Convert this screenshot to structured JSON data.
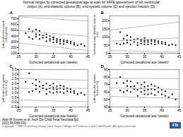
{
  "title": "Normal ranges by corrected gestational age at scan for bFFE assessment of left ventricular\noutput (A), end-diastolic volume (B), end-systolic volume (C) and ejection fraction (D).",
  "annotations": [
    {
      "text": "Alan M Groves et al. Arch Dis Child Fetal Neonatal Ed\n2011;96:F86-F91",
      "color": "#000000"
    },
    {
      "text": "Copyright © BMJ Publishing Group Ltd & Royal College of Paediatrics and Child Health. All rights reserved.",
      "color": "#555555"
    },
    {
      "text": "FN",
      "color": "#ffffff",
      "background": "#1a5fa8"
    }
  ],
  "chart_data": [
    {
      "type": "scatter",
      "title": "A",
      "xlabel": "Corrected gestational age (weeks)",
      "ylabel": "Left ventricular output\n(mL/kg/min)",
      "xlim": [
        25,
        45
      ],
      "xticks": [
        25,
        30,
        35,
        40,
        45
      ],
      "ylim": [
        100,
        750
      ],
      "yticks": [
        100,
        200,
        300,
        400,
        500,
        600,
        700
      ],
      "series": [
        {
          "type": "scatter",
          "color": "#000000",
          "marker": "square",
          "x": [
            27,
            28,
            28,
            29,
            29,
            30,
            30,
            30,
            31,
            31,
            31,
            32,
            32,
            33,
            33,
            33,
            34,
            34,
            34,
            35,
            35,
            35,
            35,
            36,
            36,
            36,
            37,
            37,
            37,
            38,
            38,
            38,
            39,
            39,
            40,
            40,
            41,
            41,
            42,
            43,
            44
          ],
          "values": [
            450,
            520,
            380,
            480,
            350,
            430,
            510,
            390,
            420,
            490,
            350,
            410,
            370,
            430,
            380,
            310,
            350,
            400,
            320,
            370,
            340,
            290,
            380,
            320,
            350,
            290,
            310,
            340,
            270,
            300,
            330,
            260,
            290,
            320,
            270,
            300,
            250,
            280,
            240,
            260,
            230
          ]
        },
        {
          "type": "line",
          "color": "#aaaaaa",
          "x": [
            25,
            45
          ],
          "values": [
            495,
            395
          ]
        },
        {
          "type": "line",
          "color": "#aaaaaa",
          "x": [
            25,
            45
          ],
          "values": [
            732.5,
            662.5
          ]
        },
        {
          "type": "line",
          "color": "#aaaaaa",
          "x": [
            25,
            45
          ],
          "values": [
            277.5,
            147.5
          ]
        }
      ]
    },
    {
      "type": "scatter",
      "title": "B",
      "xlabel": "Corrected gestational age (weeks)",
      "ylabel": "Left ventricular diastolic volume\n(mL)",
      "xlim": [
        25,
        45
      ],
      "xticks": [
        25,
        30,
        35,
        40,
        45
      ],
      "ylim": [
        0,
        230
      ],
      "yticks": [
        0,
        50,
        100,
        150,
        200
      ],
      "series": [
        {
          "type": "scatter",
          "color": "#000000",
          "marker": "square",
          "x": [
            27,
            28,
            28,
            29,
            29,
            30,
            30,
            30,
            31,
            31,
            31,
            32,
            32,
            33,
            33,
            33,
            34,
            34,
            34,
            35,
            35,
            35,
            35,
            36,
            36,
            36,
            37,
            37,
            37,
            38,
            38,
            38,
            39,
            39,
            40,
            40,
            41,
            41,
            42,
            43,
            44
          ],
          "values": [
            60,
            130,
            55,
            90,
            60,
            80,
            110,
            65,
            80,
            100,
            55,
            85,
            70,
            90,
            65,
            50,
            75,
            85,
            60,
            80,
            70,
            55,
            95,
            70,
            80,
            55,
            75,
            85,
            60,
            70,
            80,
            55,
            65,
            75,
            60,
            70,
            55,
            65,
            50,
            55,
            50
          ]
        },
        {
          "type": "line",
          "color": "#aaaaaa",
          "x": [
            25,
            45
          ],
          "values": [
            75,
            95
          ]
        },
        {
          "type": "line",
          "color": "#aaaaaa",
          "x": [
            25,
            45
          ],
          "values": [
            142.5,
            192.5
          ]
        },
        {
          "type": "line",
          "color": "#aaaaaa",
          "x": [
            25,
            45
          ],
          "values": [
            17.5,
            7.5
          ]
        }
      ]
    },
    {
      "type": "scatter",
      "title": "C",
      "xlabel": "Corrected gestational age (weeks)",
      "ylabel": "Left ventricular systolic\nvolume (mL)",
      "xlim": [
        25,
        45
      ],
      "xticks": [
        25,
        30,
        35,
        40,
        45
      ],
      "ylim": [
        -0.5,
        3.5
      ],
      "yticks": [
        -0.5,
        {
          "value": 0,
          "label": "0.0"
        },
        0.5,
        {
          "value": 1,
          "label": "1.0"
        },
        1.5,
        {
          "value": 2,
          "label": "2.0"
        },
        2.5,
        {
          "value": 3,
          "label": "3.0"
        },
        3.5
      ],
      "series": [
        {
          "type": "scatter",
          "color": "#000000",
          "marker": "square",
          "x": [
            27,
            28,
            28,
            29,
            29,
            30,
            30,
            30,
            31,
            31,
            31,
            32,
            32,
            33,
            33,
            33,
            34,
            34,
            34,
            35,
            35,
            35,
            35,
            36,
            36,
            36,
            37,
            37,
            37,
            38,
            38,
            38,
            39,
            39,
            40,
            40,
            41,
            41,
            42,
            43,
            44
          ],
          "values": [
            2.2,
            3.1,
            1.1,
            2.0,
            1.2,
            1.8,
            2.4,
            1.4,
            1.7,
            2.2,
            1.1,
            1.8,
            1.5,
            2.0,
            1.4,
            0.9,
            1.5,
            1.8,
            1.1,
            1.6,
            1.4,
            1.0,
            2.0,
            1.4,
            1.7,
            1.1,
            1.5,
            1.8,
            1.1,
            1.4,
            1.7,
            1.0,
            1.2,
            1.5,
            1.1,
            1.4,
            1.0,
            1.2,
            0.9,
            1.0,
            0.8
          ]
        },
        {
          "type": "line",
          "color": "#aaaaaa",
          "x": [
            25,
            45
          ],
          "values": [
            1.5,
            1.5
          ]
        },
        {
          "type": "line",
          "color": "#aaaaaa",
          "x": [
            25,
            45
          ],
          "values": [
            2.55,
            2.35
          ]
        },
        {
          "type": "line",
          "color": "#aaaaaa",
          "x": [
            25,
            45
          ],
          "values": [
            0.25,
            0.05
          ]
        }
      ]
    },
    {
      "type": "scatter",
      "title": "D",
      "xlabel": "Corrected gestational age (weeks)",
      "ylabel": "Left ventricular ejection\nfraction (%)",
      "xlim": [
        25,
        45
      ],
      "xticks": [
        25,
        30,
        35,
        40,
        45
      ],
      "ylim": [
        40,
        90
      ],
      "yticks": [
        40,
        50,
        60,
        70,
        80,
        90
      ],
      "series": [
        {
          "type": "scatter",
          "color": "#000000",
          "marker": "square",
          "x": [
            27,
            28,
            28,
            29,
            29,
            30,
            30,
            30,
            31,
            31,
            31,
            32,
            32,
            33,
            33,
            33,
            34,
            34,
            34,
            35,
            35,
            35,
            35,
            36,
            36,
            36,
            37,
            37,
            37,
            38,
            38,
            38,
            39,
            39,
            40,
            40,
            41,
            41,
            42,
            43,
            44
          ],
          "values": [
            72,
            80,
            62,
            72,
            60,
            68,
            75,
            62,
            67,
            74,
            60,
            68,
            64,
            72,
            63,
            55,
            65,
            70,
            60,
            67,
            62,
            57,
            73,
            63,
            68,
            57,
            64,
            70,
            58,
            63,
            68,
            56,
            60,
            66,
            57,
            63,
            55,
            61,
            53,
            57,
            50
          ]
        },
        {
          "type": "line",
          "color": "#aaaaaa",
          "x": [
            25,
            45
          ],
          "values": [
            65.5,
            63.5
          ]
        },
        {
          "type": "line",
          "color": "#aaaaaa",
          "x": [
            25,
            45
          ],
          "values": [
            78.75,
            77.75
          ]
        },
        {
          "type": "line",
          "color": "#aaaaaa",
          "x": [
            25,
            45
          ],
          "values": [
            54.25,
            51.25
          ]
        }
      ]
    }
  ]
}
